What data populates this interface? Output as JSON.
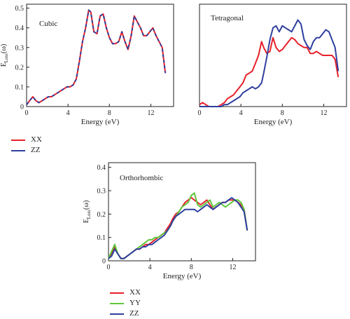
{
  "chart_data": [
    {
      "type": "line",
      "title": "Cubic",
      "xlabel": "Energy (eV)",
      "ylabel": "E_Loss(ω)",
      "ylabel_main": "E",
      "ylabel_sub": "Loss",
      "ylabel_rest": "(ω)",
      "xlim": [
        0,
        14.2
      ],
      "ylim": [
        0,
        0.52
      ],
      "xticks": [
        "0",
        "4",
        "8",
        "12"
      ],
      "xtick_values": [
        0,
        4,
        8,
        12
      ],
      "yticks": [
        "0",
        "0.1",
        "0.2",
        "0.3",
        "0.4",
        "0.5"
      ],
      "ytick_values": [
        0,
        0.1,
        0.2,
        0.3,
        0.4,
        0.5
      ],
      "legend_position": "below",
      "x": [
        0,
        0.3,
        0.6,
        0.9,
        1.2,
        1.5,
        1.8,
        2.1,
        2.4,
        2.7,
        3.0,
        3.3,
        3.6,
        3.9,
        4.2,
        4.5,
        4.8,
        5.1,
        5.4,
        5.7,
        6.0,
        6.2,
        6.5,
        6.8,
        7.1,
        7.4,
        7.7,
        8.0,
        8.3,
        8.6,
        8.9,
        9.2,
        9.5,
        9.8,
        10.1,
        10.4,
        10.7,
        11.0,
        11.3,
        11.6,
        11.9,
        12.2,
        12.5,
        12.8,
        13.1,
        13.4
      ],
      "series": [
        {
          "name": "XX",
          "color": "#e8202a",
          "values": [
            0.01,
            0.03,
            0.05,
            0.03,
            0.02,
            0.03,
            0.04,
            0.05,
            0.05,
            0.06,
            0.07,
            0.08,
            0.09,
            0.1,
            0.1,
            0.11,
            0.14,
            0.23,
            0.33,
            0.4,
            0.49,
            0.48,
            0.38,
            0.37,
            0.46,
            0.47,
            0.4,
            0.35,
            0.32,
            0.32,
            0.33,
            0.38,
            0.33,
            0.29,
            0.36,
            0.46,
            0.43,
            0.4,
            0.36,
            0.36,
            0.38,
            0.4,
            0.36,
            0.33,
            0.3,
            0.17
          ]
        },
        {
          "name": "ZZ",
          "color": "#2e3f9e",
          "values": [
            0.01,
            0.03,
            0.05,
            0.03,
            0.02,
            0.03,
            0.04,
            0.05,
            0.05,
            0.06,
            0.07,
            0.08,
            0.09,
            0.1,
            0.1,
            0.11,
            0.14,
            0.23,
            0.33,
            0.4,
            0.49,
            0.48,
            0.38,
            0.37,
            0.46,
            0.47,
            0.4,
            0.35,
            0.32,
            0.32,
            0.33,
            0.38,
            0.33,
            0.29,
            0.36,
            0.46,
            0.43,
            0.4,
            0.36,
            0.36,
            0.38,
            0.4,
            0.36,
            0.33,
            0.3,
            0.17
          ]
        }
      ]
    },
    {
      "type": "line",
      "title": "Tetragonal",
      "xlabel": "Energy (eV)",
      "ylabel": "",
      "xlim": [
        0,
        14.2
      ],
      "ylim": [
        0,
        0.52
      ],
      "xticks": [
        "0",
        "4",
        "8",
        "12"
      ],
      "xtick_values": [
        0,
        4,
        8,
        12
      ],
      "yticks": [],
      "ytick_values": [],
      "legend_position": "none",
      "x": [
        0,
        0.3,
        0.6,
        0.9,
        1.2,
        1.5,
        1.8,
        2.1,
        2.4,
        2.7,
        3.0,
        3.3,
        3.6,
        3.9,
        4.2,
        4.5,
        4.8,
        5.1,
        5.4,
        5.7,
        6.0,
        6.2,
        6.5,
        6.8,
        7.1,
        7.4,
        7.7,
        8.0,
        8.3,
        8.6,
        8.9,
        9.2,
        9.5,
        9.8,
        10.1,
        10.4,
        10.7,
        11.0,
        11.3,
        11.6,
        11.9,
        12.2,
        12.5,
        12.8,
        13.1,
        13.4
      ],
      "series": [
        {
          "name": "XX",
          "color": "#e8202a",
          "values": [
            0.01,
            0.02,
            0.01,
            0.0,
            0.0,
            0.0,
            0.0,
            0.01,
            0.02,
            0.04,
            0.05,
            0.06,
            0.08,
            0.1,
            0.12,
            0.16,
            0.17,
            0.18,
            0.22,
            0.26,
            0.33,
            0.3,
            0.27,
            0.28,
            0.35,
            0.3,
            0.28,
            0.29,
            0.31,
            0.33,
            0.35,
            0.34,
            0.32,
            0.31,
            0.3,
            0.3,
            0.27,
            0.27,
            0.28,
            0.27,
            0.26,
            0.26,
            0.26,
            0.26,
            0.24,
            0.15
          ]
        },
        {
          "name": "ZZ",
          "color": "#2e3f9e",
          "values": [
            0.0,
            0.0,
            0.0,
            0.0,
            0.0,
            0.0,
            0.0,
            0.0,
            0.01,
            0.01,
            0.02,
            0.03,
            0.04,
            0.05,
            0.07,
            0.08,
            0.09,
            0.1,
            0.09,
            0.1,
            0.12,
            0.17,
            0.25,
            0.34,
            0.4,
            0.41,
            0.38,
            0.41,
            0.4,
            0.39,
            0.38,
            0.41,
            0.44,
            0.42,
            0.34,
            0.31,
            0.29,
            0.33,
            0.35,
            0.35,
            0.37,
            0.39,
            0.38,
            0.34,
            0.3,
            0.18
          ]
        }
      ]
    },
    {
      "type": "line",
      "title": "Orthorhombic",
      "xlabel": "Energy (eV)",
      "ylabel": "E_Loss(ω)",
      "ylabel_main": "E",
      "ylabel_sub": "Loss",
      "ylabel_rest": "(ω)",
      "xlim": [
        0,
        14.2
      ],
      "ylim": [
        0,
        0.42
      ],
      "xticks": [
        "0",
        "4",
        "8",
        "12"
      ],
      "xtick_values": [
        0,
        4,
        8,
        12
      ],
      "yticks": [
        "0",
        "0.1",
        "0.2",
        "0.3",
        "0.4"
      ],
      "ytick_values": [
        0,
        0.1,
        0.2,
        0.3,
        0.4
      ],
      "legend_position": "below",
      "x": [
        0,
        0.3,
        0.6,
        0.9,
        1.2,
        1.5,
        1.8,
        2.1,
        2.4,
        2.7,
        3.0,
        3.3,
        3.6,
        3.9,
        4.2,
        4.5,
        4.8,
        5.1,
        5.4,
        5.7,
        6.0,
        6.2,
        6.5,
        6.8,
        7.1,
        7.4,
        7.7,
        8.0,
        8.3,
        8.6,
        8.9,
        9.2,
        9.5,
        9.8,
        10.1,
        10.4,
        10.7,
        11.0,
        11.3,
        11.6,
        11.9,
        12.2,
        12.5,
        12.8,
        13.1,
        13.4
      ],
      "series": [
        {
          "name": "XX",
          "color": "#e8202a",
          "values": [
            0.01,
            0.03,
            0.06,
            0.03,
            0.01,
            0.01,
            0.02,
            0.03,
            0.04,
            0.05,
            0.05,
            0.06,
            0.07,
            0.07,
            0.08,
            0.09,
            0.1,
            0.11,
            0.12,
            0.14,
            0.16,
            0.18,
            0.2,
            0.21,
            0.23,
            0.25,
            0.26,
            0.27,
            0.26,
            0.25,
            0.24,
            0.25,
            0.26,
            0.24,
            0.22,
            0.23,
            0.24,
            0.25,
            0.25,
            0.26,
            0.26,
            0.26,
            0.25,
            0.24,
            0.22,
            0.13
          ]
        },
        {
          "name": "YY",
          "color": "#5fc63a",
          "values": [
            0.01,
            0.04,
            0.07,
            0.03,
            0.01,
            0.01,
            0.02,
            0.03,
            0.04,
            0.05,
            0.06,
            0.07,
            0.08,
            0.09,
            0.09,
            0.1,
            0.1,
            0.11,
            0.12,
            0.13,
            0.15,
            0.17,
            0.19,
            0.21,
            0.23,
            0.24,
            0.25,
            0.28,
            0.29,
            0.24,
            0.23,
            0.24,
            0.25,
            0.26,
            0.23,
            0.24,
            0.25,
            0.24,
            0.23,
            0.24,
            0.25,
            0.26,
            0.26,
            0.25,
            0.22,
            0.13
          ]
        },
        {
          "name": "ZZ",
          "color": "#2e3f9e",
          "values": [
            0.01,
            0.02,
            0.05,
            0.03,
            0.01,
            0.01,
            0.02,
            0.03,
            0.04,
            0.05,
            0.05,
            0.06,
            0.06,
            0.07,
            0.07,
            0.08,
            0.09,
            0.1,
            0.11,
            0.13,
            0.15,
            0.17,
            0.19,
            0.2,
            0.21,
            0.22,
            0.22,
            0.22,
            0.22,
            0.21,
            0.22,
            0.23,
            0.24,
            0.23,
            0.22,
            0.23,
            0.24,
            0.25,
            0.25,
            0.26,
            0.27,
            0.26,
            0.25,
            0.23,
            0.21,
            0.13
          ]
        }
      ]
    }
  ]
}
